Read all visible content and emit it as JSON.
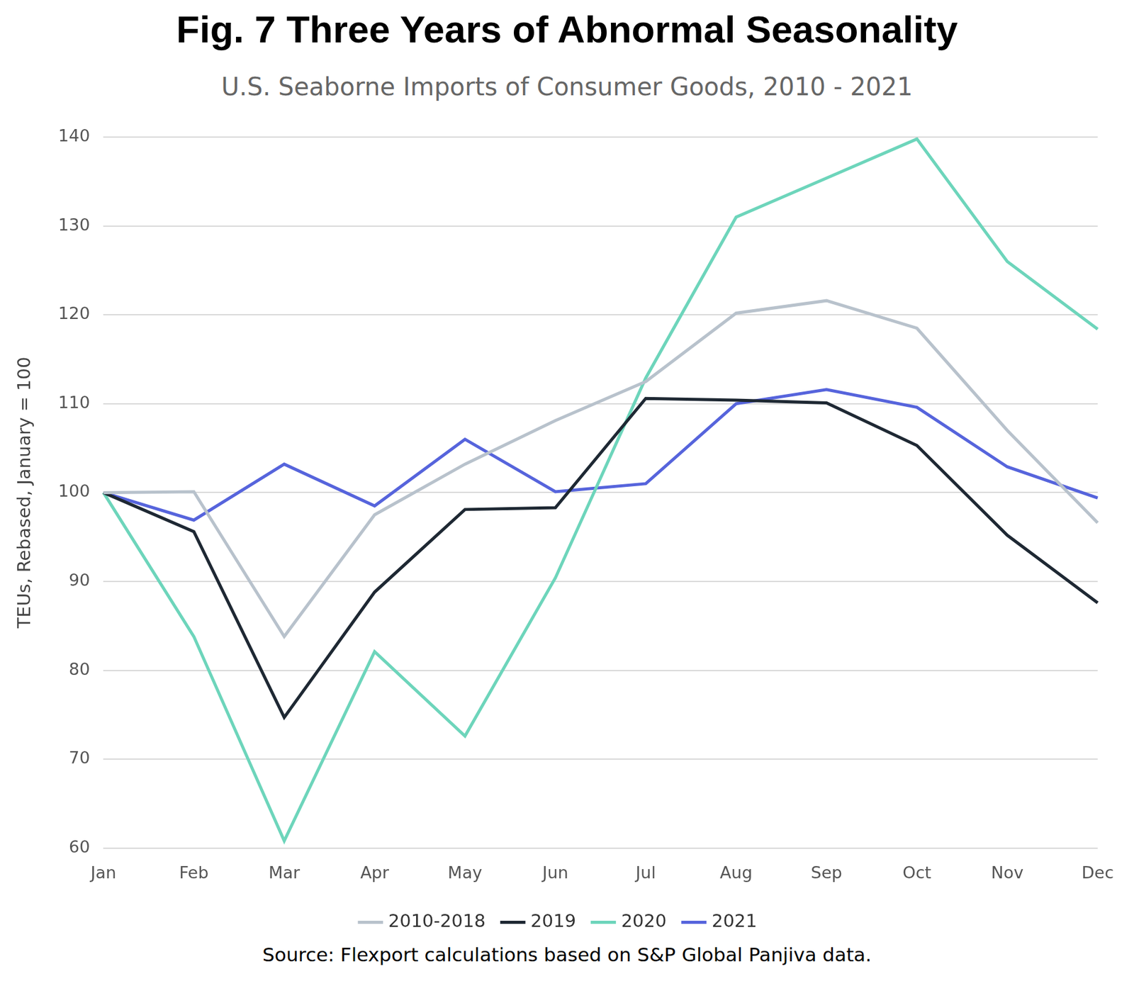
{
  "chart_data": {
    "type": "line",
    "title": "Fig. 7 Three Years of Abnormal Seasonality",
    "subtitle": "U.S. Seaborne Imports of Consumer Goods, 2010 - 2021",
    "y_label": "TEUs, Rebased, January = 100",
    "source": "Source: Flexport calculations based on S&P Global Panjiva data.",
    "categories": [
      "Jan",
      "Feb",
      "Mar",
      "Apr",
      "May",
      "Jun",
      "Jul",
      "Aug",
      "Sep",
      "Oct",
      "Nov",
      "Dec"
    ],
    "series": [
      {
        "name": "2010-2018",
        "color": "#b8c2cc",
        "values": [
          100,
          100.1,
          83.8,
          97.5,
          103.2,
          108.1,
          112.5,
          120.2,
          121.6,
          118.5,
          107,
          96.6
        ]
      },
      {
        "name": "2019",
        "color": "#1e2833",
        "values": [
          100,
          95.6,
          74.7,
          88.8,
          98.1,
          98.3,
          110.6,
          110.4,
          110.1,
          105.3,
          95.2,
          87.6
        ]
      },
      {
        "name": "2020",
        "color": "#6dd5bb",
        "values": [
          100,
          83.8,
          60.8,
          82.1,
          72.6,
          90.4,
          112.9,
          131,
          135.4,
          139.8,
          126,
          118.4
        ]
      },
      {
        "name": "2021",
        "color": "#5664dc",
        "values": [
          100,
          96.9,
          103.2,
          98.5,
          106,
          100.1,
          101,
          110,
          111.6,
          109.6,
          102.9,
          99.4
        ]
      }
    ],
    "ylim": [
      60,
      140
    ],
    "yticks": [
      60,
      70,
      80,
      90,
      100,
      110,
      120,
      130,
      140
    ],
    "grid": true,
    "legend": "bottom"
  }
}
